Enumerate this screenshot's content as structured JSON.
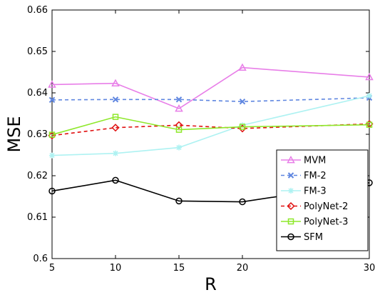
{
  "chart_data": {
    "type": "line",
    "title": "",
    "xlabel": "R",
    "ylabel": "MSE",
    "x": [
      5,
      10,
      15,
      20,
      30
    ],
    "xticks": [
      "5",
      "10",
      "15",
      "20",
      "30"
    ],
    "yticks": [
      "0.6",
      "0.61",
      "0.62",
      "0.63",
      "0.64",
      "0.65",
      "0.66"
    ],
    "xlim": [
      5,
      30
    ],
    "ylim": [
      0.6,
      0.66
    ],
    "grid": false,
    "legend_position": "bottom-right",
    "series": [
      {
        "name": "MVM",
        "color": "#e87ee8",
        "dash": "solid",
        "marker": "triangle",
        "values": [
          0.642,
          0.6423,
          0.6362,
          0.6461,
          0.6438
        ]
      },
      {
        "name": "FM-2",
        "color": "#5f86e0",
        "dash": "dashed",
        "marker": "x",
        "values": [
          0.6383,
          0.6384,
          0.6384,
          0.6379,
          0.6388
        ]
      },
      {
        "name": "FM-3",
        "color": "#aef2f2",
        "dash": "solid",
        "marker": "star",
        "values": [
          0.6249,
          0.6254,
          0.6268,
          0.6322,
          0.6393
        ]
      },
      {
        "name": "PolyNet-2",
        "color": "#e01010",
        "dash": "dashed",
        "marker": "diamond",
        "values": [
          0.6297,
          0.6316,
          0.6322,
          0.6314,
          0.6325
        ]
      },
      {
        "name": "PolyNet-3",
        "color": "#8ee82a",
        "dash": "solid",
        "marker": "square",
        "values": [
          0.6299,
          0.6342,
          0.6311,
          0.6318,
          0.6323
        ]
      },
      {
        "name": "SFM",
        "color": "#000000",
        "dash": "solid",
        "marker": "circle",
        "values": [
          0.6163,
          0.6189,
          0.6139,
          0.6137,
          0.6183
        ]
      }
    ]
  }
}
